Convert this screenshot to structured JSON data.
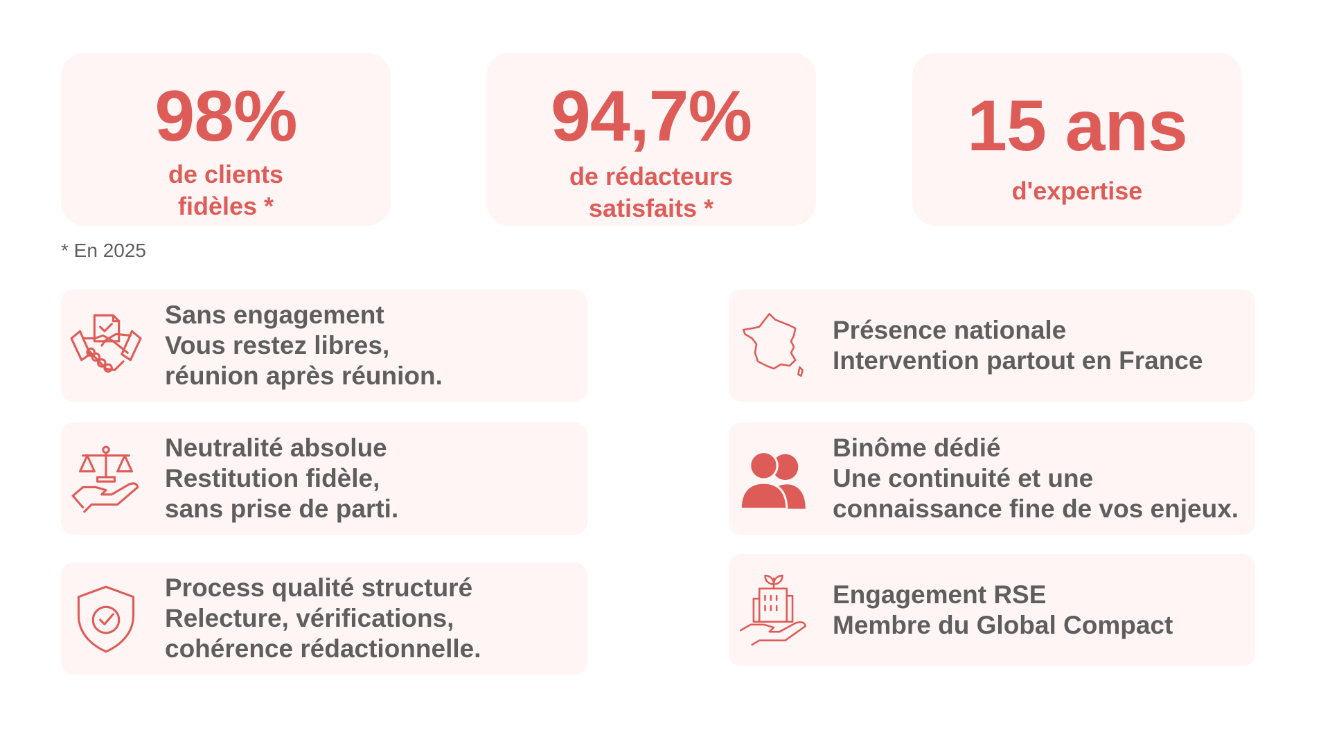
{
  "accent_color": "#de5c58",
  "card_background": "#fff5f4",
  "text_color": "#5e5e5e",
  "stats": [
    {
      "value": "98%",
      "label": "de clients\nfidèles *"
    },
    {
      "value": "94,7%",
      "label": "de rédacteurs\nsatisfaits *"
    },
    {
      "value": "15 ans",
      "label": "d'expertise"
    }
  ],
  "footnote": "* En 2025",
  "features": [
    {
      "icon": "handshake-contract-icon",
      "title": "Sans engagement",
      "lines": [
        "Vous restez libres,",
        "réunion après réunion."
      ]
    },
    {
      "icon": "scales-in-hand-icon",
      "title": "Neutralité absolue",
      "lines": [
        "Restitution fidèle,",
        "sans prise de parti."
      ]
    },
    {
      "icon": "shield-check-icon",
      "title": "Process qualité structuré",
      "lines": [
        "Relecture, vérifications,",
        "cohérence rédactionnelle."
      ]
    },
    {
      "icon": "france-map-icon",
      "title": "Présence nationale",
      "lines": [
        "Intervention partout en France"
      ]
    },
    {
      "icon": "two-people-icon",
      "title": "Binôme dédié",
      "lines": [
        "Une continuité et une",
        "connaissance fine de vos enjeux."
      ]
    },
    {
      "icon": "building-plant-in-hand-icon",
      "title": "Engagement RSE",
      "lines": [
        "Membre du Global Compact"
      ]
    }
  ]
}
